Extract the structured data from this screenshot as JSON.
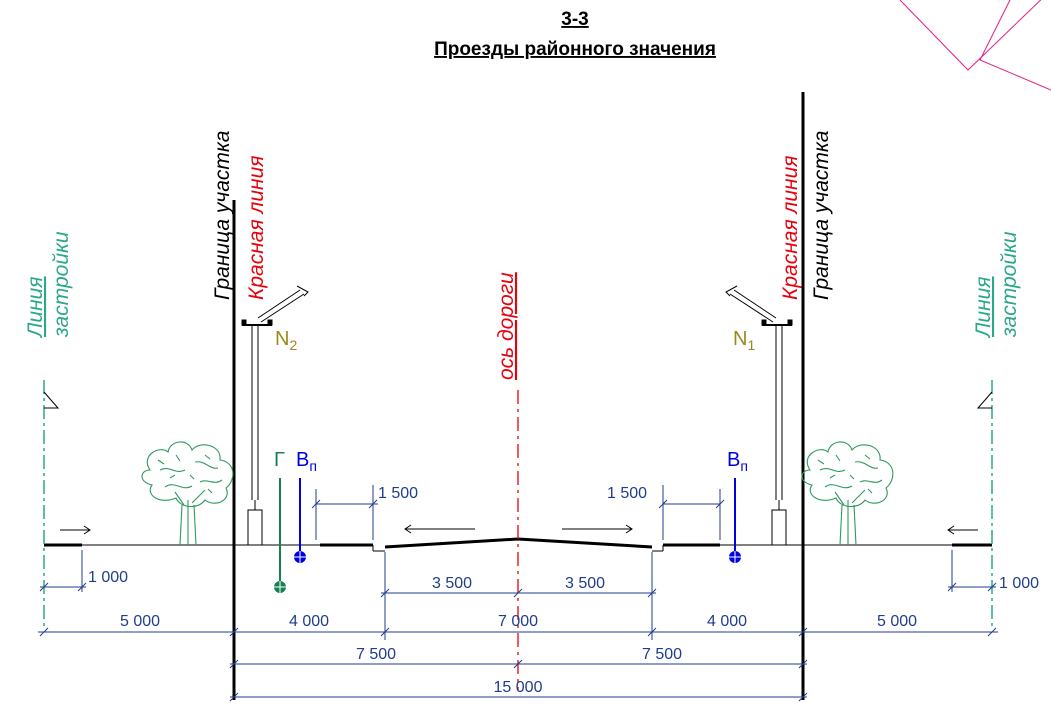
{
  "title": {
    "section": "3-3",
    "name": "Проезды районного значения"
  },
  "vertical_labels": {
    "boundary_left": "Граница участка",
    "red_line_left": "Красная линия",
    "red_line_right": "Красная линия",
    "boundary_right": "Граница участка",
    "road_axis": "ось дороги",
    "building_line_left_top": "Линия",
    "building_line_left_bottom": "застройки",
    "building_line_right_top": "Линия",
    "building_line_right_bottom": "застройки"
  },
  "markers": {
    "lamp_left": {
      "letter": "N",
      "sub": "2"
    },
    "lamp_right": {
      "letter": "N",
      "sub": "1"
    },
    "gas": "Г",
    "water_left": {
      "letter": "В",
      "sub": "п"
    },
    "water_right": {
      "letter": "В",
      "sub": "п"
    }
  },
  "dimensions": {
    "d1000_left": "1 000",
    "d1000_right": "1 000",
    "d1500_left": "1 500",
    "d1500_right": "1 500",
    "d3500_left": "3 500",
    "d3500_right": "3 500",
    "d5000_left": "5 000",
    "d4000_left": "4 000",
    "d7000": "7 000",
    "d4000_right": "4 000",
    "d5000_right": "5 000",
    "d7500_left": "7 500",
    "d7500_right": "7 500",
    "d15000": "15 000"
  },
  "colors": {
    "black": "#000000",
    "red": "#e8000b",
    "teal": "#2aa889",
    "blue": "#0000e0",
    "olive": "#9a8a1a",
    "dim_line": "#1f3d8c",
    "tree": "#2e9a5e",
    "magenta": "#e0208c",
    "gas_pipe": "#178050"
  }
}
